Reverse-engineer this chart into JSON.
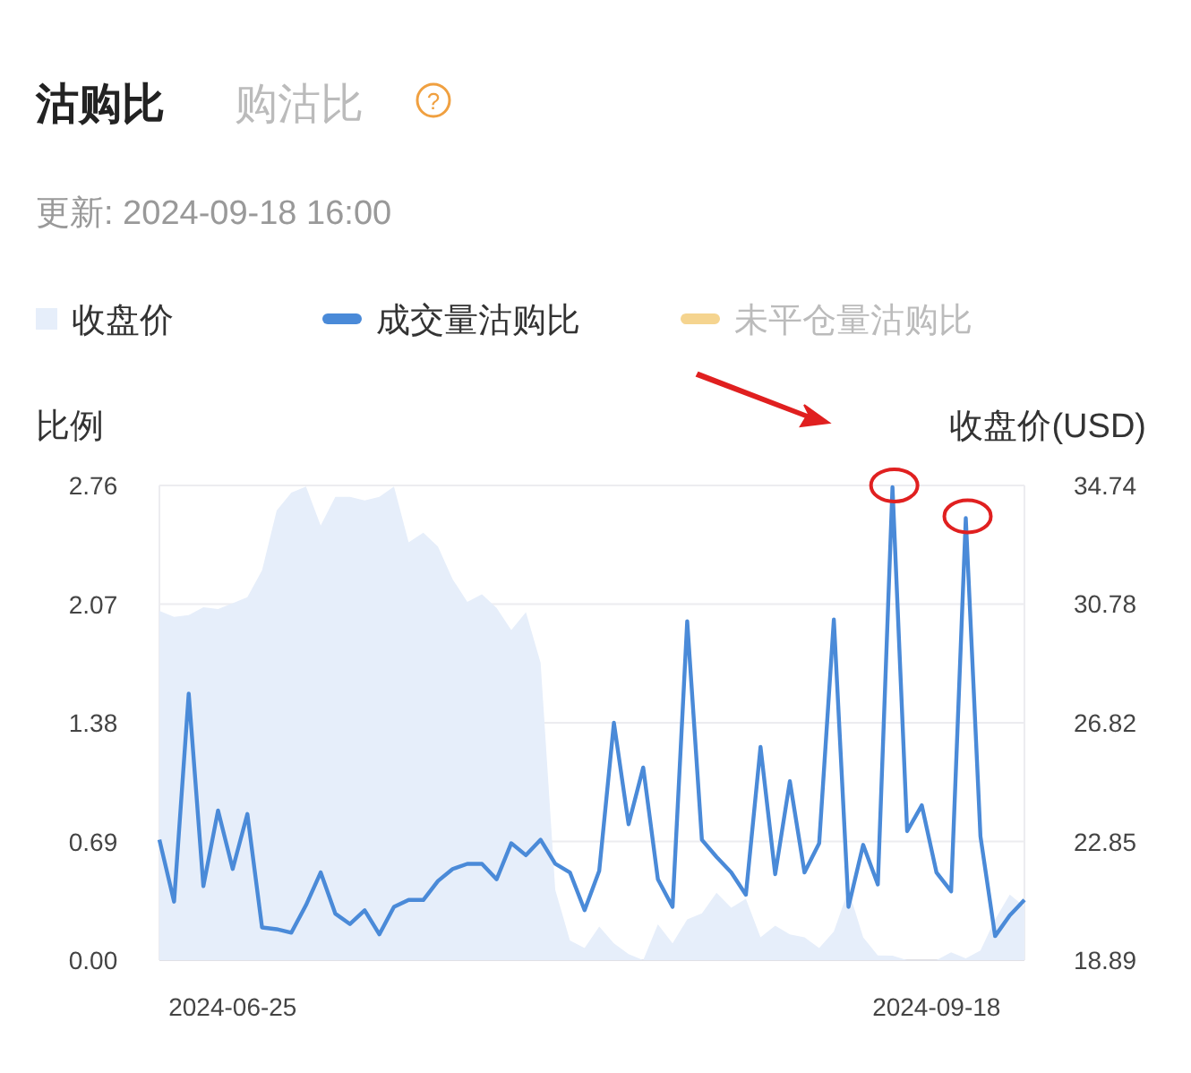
{
  "chart_data": {
    "type": "line",
    "title": "沽购比",
    "subtitle": "更新: 2024-09-18 16:00",
    "annotations": [
      "购沽比",
      "?"
    ],
    "ylabel": "比例",
    "y2label": "收盘价(USD)",
    "categories": [
      null,
      null,
      null,
      null,
      null,
      "2024-06-25",
      null,
      null,
      null,
      null,
      null,
      null,
      null,
      null,
      null,
      null,
      null,
      null,
      null,
      null,
      null,
      null,
      null,
      null,
      null,
      null,
      null,
      null,
      null,
      null,
      null,
      null,
      null,
      null,
      null,
      null,
      null,
      null,
      null,
      null,
      null,
      null,
      null,
      null,
      null,
      null,
      null,
      null,
      null,
      null,
      null,
      null,
      null,
      "2024-09-18",
      null,
      null,
      null,
      null,
      null,
      null
    ],
    "series": [
      {
        "name": "收盘价",
        "type": "area",
        "axis": "y2",
        "color": "#e6eefa",
        "values": [
          30.55,
          30.35,
          30.41,
          30.67,
          30.61,
          30.81,
          31.01,
          31.91,
          33.9,
          34.5,
          34.7,
          33.4,
          34.36,
          34.36,
          34.24,
          34.36,
          34.7,
          32.84,
          33.16,
          32.7,
          31.61,
          30.85,
          31.11,
          30.65,
          29.91,
          30.51,
          28.82,
          21.24,
          19.55,
          19.29,
          20.01,
          19.45,
          19.09,
          18.89,
          20.09,
          19.45,
          20.25,
          20.45,
          21.14,
          20.64,
          20.94,
          19.65,
          20.04,
          19.75,
          19.65,
          19.29,
          19.85,
          21.24,
          19.65,
          19.05,
          19.04,
          18.89,
          18.89,
          18.89,
          19.15,
          18.95,
          19.21,
          20.25,
          21.08,
          20.68
        ]
      },
      {
        "name": "成交量沽购比",
        "color": "#4a8ad8",
        "values": [
          0.7,
          0.34,
          1.55,
          0.43,
          0.87,
          0.53,
          0.85,
          0.19,
          0.18,
          0.16,
          0.32,
          0.51,
          0.27,
          0.21,
          0.29,
          0.15,
          0.31,
          0.35,
          0.35,
          0.46,
          0.53,
          0.56,
          0.56,
          0.47,
          0.68,
          0.61,
          0.7,
          0.56,
          0.51,
          0.29,
          0.52,
          1.38,
          0.79,
          1.12,
          0.47,
          0.31,
          1.97,
          0.7,
          0.6,
          0.51,
          0.38,
          1.24,
          0.5,
          1.04,
          0.51,
          0.68,
          1.98,
          0.31,
          0.67,
          0.44,
          2.75,
          0.75,
          0.9,
          0.51,
          0.4,
          2.57,
          0.72,
          0.14,
          0.26,
          0.35
        ]
      },
      {
        "name": "未平仓量沽购比",
        "color": "#f5d48f",
        "values": [
          null,
          null,
          null,
          null,
          null,
          null,
          null,
          null,
          null,
          null,
          null,
          null,
          null,
          null,
          null,
          null,
          null,
          null,
          null,
          null,
          null,
          null,
          null,
          null,
          null,
          null,
          null,
          null,
          null,
          null,
          null,
          null,
          null,
          null,
          null,
          null,
          null,
          null,
          null,
          null,
          null,
          null,
          null,
          null,
          null,
          null,
          null,
          null,
          null,
          null,
          null,
          null,
          null,
          null,
          null,
          null,
          null,
          null,
          null,
          null
        ]
      }
    ],
    "ylim": [
      0,
      2.76
    ],
    "yticks": [
      {
        "value": 0,
        "label": "0.00"
      },
      0.69,
      1.38,
      2.07,
      2.76
    ],
    "y2lim": [
      18.89,
      34.74
    ],
    "y2ticks": [
      18.89,
      22.85,
      26.82,
      30.78,
      34.74
    ],
    "grid": "y",
    "legend": "top left",
    "marker": "none",
    "line_style": "solid"
  }
}
